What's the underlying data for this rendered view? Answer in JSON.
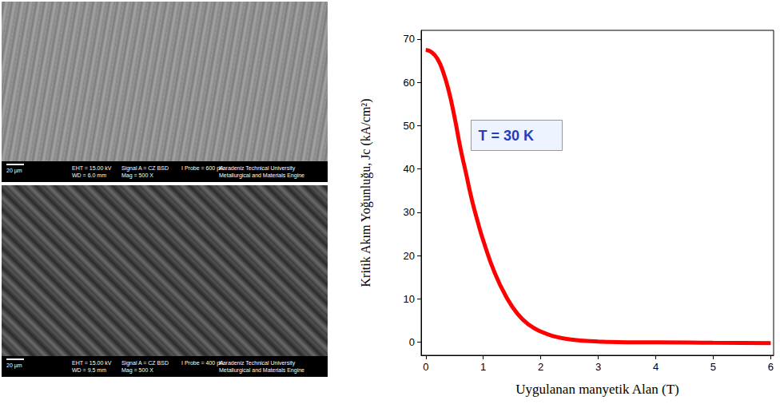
{
  "chart_data": {
    "type": "line",
    "x": [
      0,
      0.1,
      0.2,
      0.3,
      0.4,
      0.5,
      0.6,
      0.7,
      0.8,
      0.9,
      1.0,
      1.2,
      1.4,
      1.6,
      1.8,
      2.0,
      2.2,
      2.5,
      3.0,
      3.5,
      4.0,
      5.0,
      6.0
    ],
    "values": [
      67.5,
      67,
      65.5,
      62.5,
      58,
      52,
      45,
      39,
      33,
      28,
      23.5,
      16,
      10.5,
      6.5,
      4,
      2.5,
      1.5,
      0.7,
      0.2,
      0,
      0,
      -0.1,
      -0.2
    ],
    "color": "#ff0000",
    "xlabel": "Uygulanan manyetik Alan (T)",
    "ylabel": "Kritik Akım Yoğunluğu, Jc (kA/cm²)",
    "annotations": [
      "T = 30 K"
    ],
    "xlim": [
      -0.08,
      6.05
    ],
    "xticks": [
      0,
      1,
      2,
      3,
      4,
      5,
      6
    ],
    "ylim": [
      -3,
      72
    ],
    "yticks": [
      0,
      10,
      20,
      30,
      40,
      50,
      60,
      70
    ],
    "grid": false
  },
  "micrographs": [
    {
      "scale_bar": "20 µm",
      "info": [
        [
          "EHT = 15.00 kV",
          "WD = 6.0 mm"
        ],
        [
          "Signal A = CZ BSD",
          "Mag = 500 X"
        ],
        [
          "I Probe = 600 pA"
        ],
        [
          "Karadeniz Technical University",
          "Metallurgical and Materials Engine"
        ]
      ]
    },
    {
      "scale_bar": "20 µm",
      "info": [
        [
          "EHT = 15.00 kV",
          "WD = 9.5 mm"
        ],
        [
          "Signal A = CZ BSD",
          "Mag = 500 X"
        ],
        [
          "I Probe = 400 pA"
        ],
        [
          "Karadeniz Technical University",
          "Metallurgical and Materials Engine"
        ]
      ]
    }
  ]
}
